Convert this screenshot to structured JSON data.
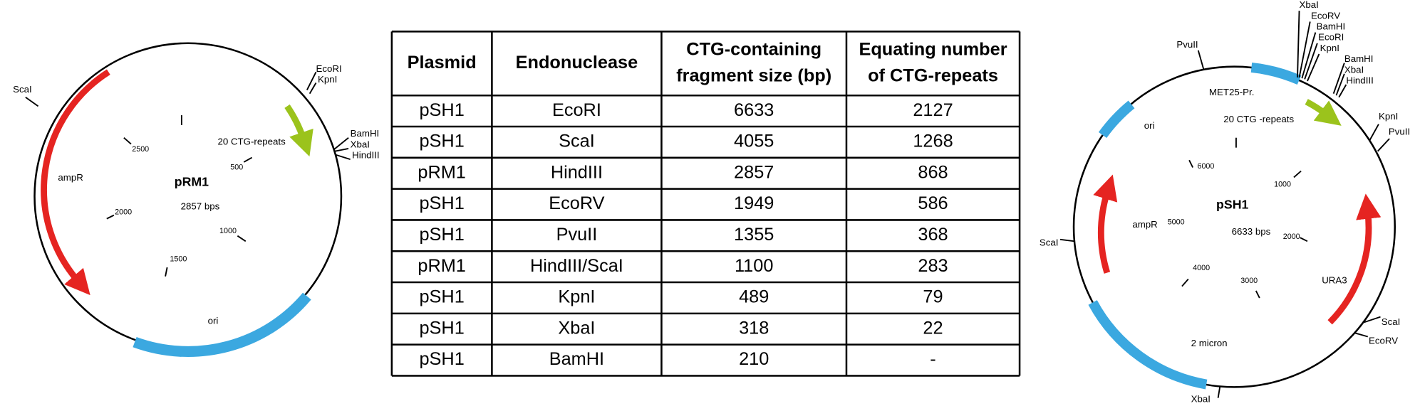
{
  "left_map": {
    "name": "pRM1",
    "size": "2857 bps",
    "features": {
      "resistance": "ampR",
      "origin": "ori",
      "repeats": "20 CTG-repeats"
    },
    "sites": [
      "ScaI",
      "EcoRI",
      "KpnI",
      "BamHI",
      "XbaI",
      "HindIII"
    ],
    "scale": [
      "500",
      "2500",
      "2000",
      "1000",
      "1500"
    ]
  },
  "table": {
    "header": [
      "Plasmid",
      "Endonuclease",
      [
        "CTG-containing",
        "fragment size (bp)"
      ],
      [
        "Equating number",
        "of CTG-repeats"
      ]
    ],
    "rows": [
      [
        "pSH1",
        "EcoRI",
        "6633",
        "2127"
      ],
      [
        "pSH1",
        "ScaI",
        "4055",
        "1268"
      ],
      [
        "pRM1",
        "HindIII",
        "2857",
        "868"
      ],
      [
        "pSH1",
        "EcoRV",
        "1949",
        "586"
      ],
      [
        "pSH1",
        "PvuII",
        "1355",
        "368"
      ],
      [
        "pRM1",
        "HindIII/ScaI",
        "1100",
        "283"
      ],
      [
        "pSH1",
        "KpnI",
        "489",
        "79"
      ],
      [
        "pSH1",
        "XbaI",
        "318",
        "22"
      ],
      [
        "pSH1",
        "BamHI",
        "210",
        "-"
      ]
    ]
  },
  "right_map": {
    "name": "pSH1",
    "size": "6633 bps",
    "features": {
      "promoter": "MET25-Pr.",
      "repeats": "20 CTG -repeats",
      "origin": "ori",
      "resistance": "ampR",
      "marker": "URA3",
      "micron": "2 micron"
    },
    "sites": [
      "XbaI",
      "EcoRV",
      "BamHI",
      "EcoRI",
      "KpnI",
      "BamHI",
      "XbaI",
      "HindIII",
      "PvuII",
      "KpnI",
      "PvuII",
      "ScaI",
      "ScaI",
      "EcoRV",
      "XbaI"
    ],
    "scale": [
      "6000",
      "1000",
      "5000",
      "2000",
      "4000",
      "3000"
    ]
  }
}
